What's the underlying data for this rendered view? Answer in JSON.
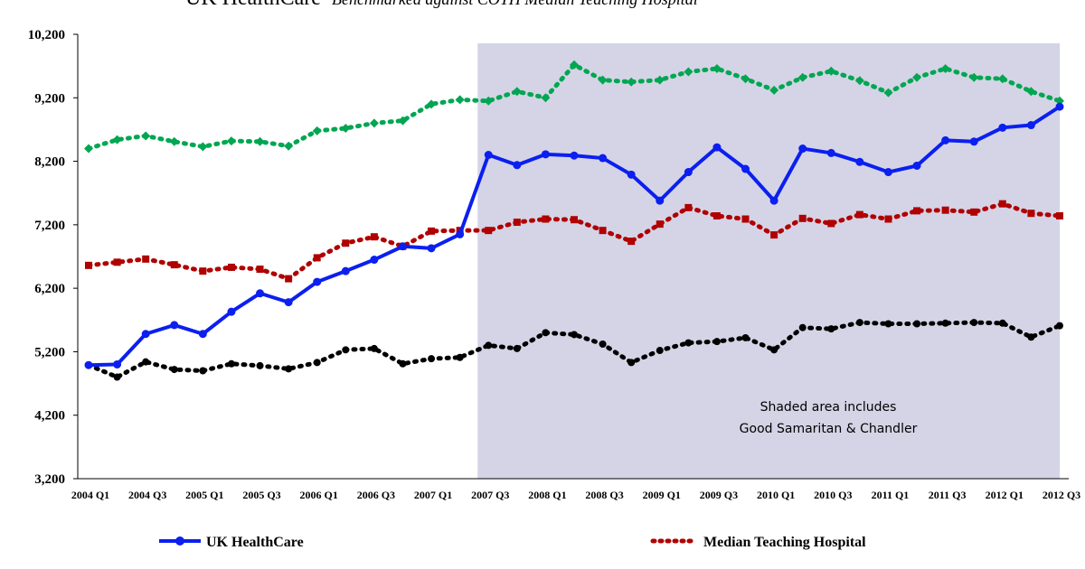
{
  "chart_data": {
    "type": "line",
    "title": "UK HealthCare",
    "subtitle": "Benchmarked against COTH Median Teaching Hospital",
    "xlabel": "",
    "ylabel": "",
    "ylim": [
      3200,
      10200
    ],
    "yticks": [
      "10,200",
      "9,200",
      "8,200",
      "7,200",
      "6,200",
      "5,200",
      "4,200",
      "3,200"
    ],
    "ytick_values": [
      10200,
      9200,
      8200,
      7200,
      6200,
      5200,
      4200,
      3200
    ],
    "categories": [
      "2004 Q1",
      "2004 Q2",
      "2004 Q3",
      "2004 Q4",
      "2005 Q1",
      "2005 Q2",
      "2005 Q3",
      "2005 Q4",
      "2006 Q1",
      "2006 Q2",
      "2006 Q3",
      "2006 Q4",
      "2007 Q1",
      "2007 Q2",
      "2007 Q3",
      "2007 Q4",
      "2008 Q1",
      "2008 Q2",
      "2008 Q3",
      "2008 Q4",
      "2009 Q1",
      "2009 Q2",
      "2009 Q3",
      "2009 Q4",
      "2010 Q1",
      "2010 Q2",
      "2010 Q3",
      "2010 Q4",
      "2011 Q1",
      "2011 Q2",
      "2011 Q3",
      "2011 Q4",
      "2012 Q1",
      "2012 Q2",
      "2012 Q3"
    ],
    "xtick_labels": [
      "2004 Q1",
      "2004 Q3",
      "2005 Q1",
      "2005 Q3",
      "2006 Q1",
      "2006 Q3",
      "2007 Q1",
      "2007 Q3",
      "2008 Q1",
      "2008 Q3",
      "2009 Q1",
      "2009 Q3",
      "2010 Q1",
      "2010 Q3",
      "2011 Q1",
      "2011 Q3",
      "2012 Q1",
      "2012 Q3"
    ],
    "shaded_region": {
      "from": "2007 Q3",
      "to": "2012 Q3",
      "label_line1": "Shaded area includes",
      "label_line2": "Good Samaritan & Chandler",
      "color": "#d4d4e6"
    },
    "series": [
      {
        "name": "UK HealthCare",
        "style": "solid",
        "color": "#0b1ff0",
        "in_legend": true,
        "values": [
          4990,
          5000,
          5480,
          5620,
          5480,
          5830,
          6120,
          5980,
          6300,
          6470,
          6650,
          6860,
          6830,
          7050,
          8300,
          8140,
          8310,
          8290,
          8250,
          7990,
          7580,
          8030,
          8420,
          8080,
          7580,
          8400,
          8330,
          8190,
          8030,
          8130,
          8530,
          8510,
          8730,
          8770,
          9060
        ]
      },
      {
        "name": "Median Teaching Hospital",
        "style": "dotted",
        "color": "#b00000",
        "in_legend": true,
        "values": [
          6560,
          6610,
          6660,
          6570,
          6470,
          6530,
          6500,
          6350,
          6680,
          6910,
          7010,
          6860,
          7100,
          7110,
          7110,
          7240,
          7290,
          7280,
          7110,
          6940,
          7210,
          7470,
          7340,
          7290,
          7040,
          7300,
          7220,
          7360,
          7290,
          7420,
          7430,
          7400,
          7530,
          7380,
          7340
        ]
      },
      {
        "name": "",
        "style": "dotted",
        "color": "#00a651",
        "in_legend": false,
        "values": [
          8400,
          8540,
          8600,
          8510,
          8430,
          8520,
          8510,
          8440,
          8680,
          8720,
          8800,
          8840,
          9100,
          9170,
          9150,
          9300,
          9200,
          9720,
          9480,
          9450,
          9480,
          9610,
          9660,
          9500,
          9320,
          9520,
          9620,
          9470,
          9280,
          9520,
          9660,
          9520,
          9500,
          9300,
          9150
        ]
      },
      {
        "name": "",
        "style": "dotted",
        "color": "#000000",
        "in_legend": false,
        "values": [
          4990,
          4800,
          5040,
          4920,
          4900,
          5010,
          4980,
          4930,
          5030,
          5230,
          5250,
          5010,
          5090,
          5110,
          5300,
          5250,
          5500,
          5470,
          5320,
          5030,
          5220,
          5340,
          5360,
          5420,
          5230,
          5580,
          5560,
          5660,
          5640,
          5640,
          5650,
          5660,
          5650,
          5430,
          5610
        ]
      }
    ]
  }
}
